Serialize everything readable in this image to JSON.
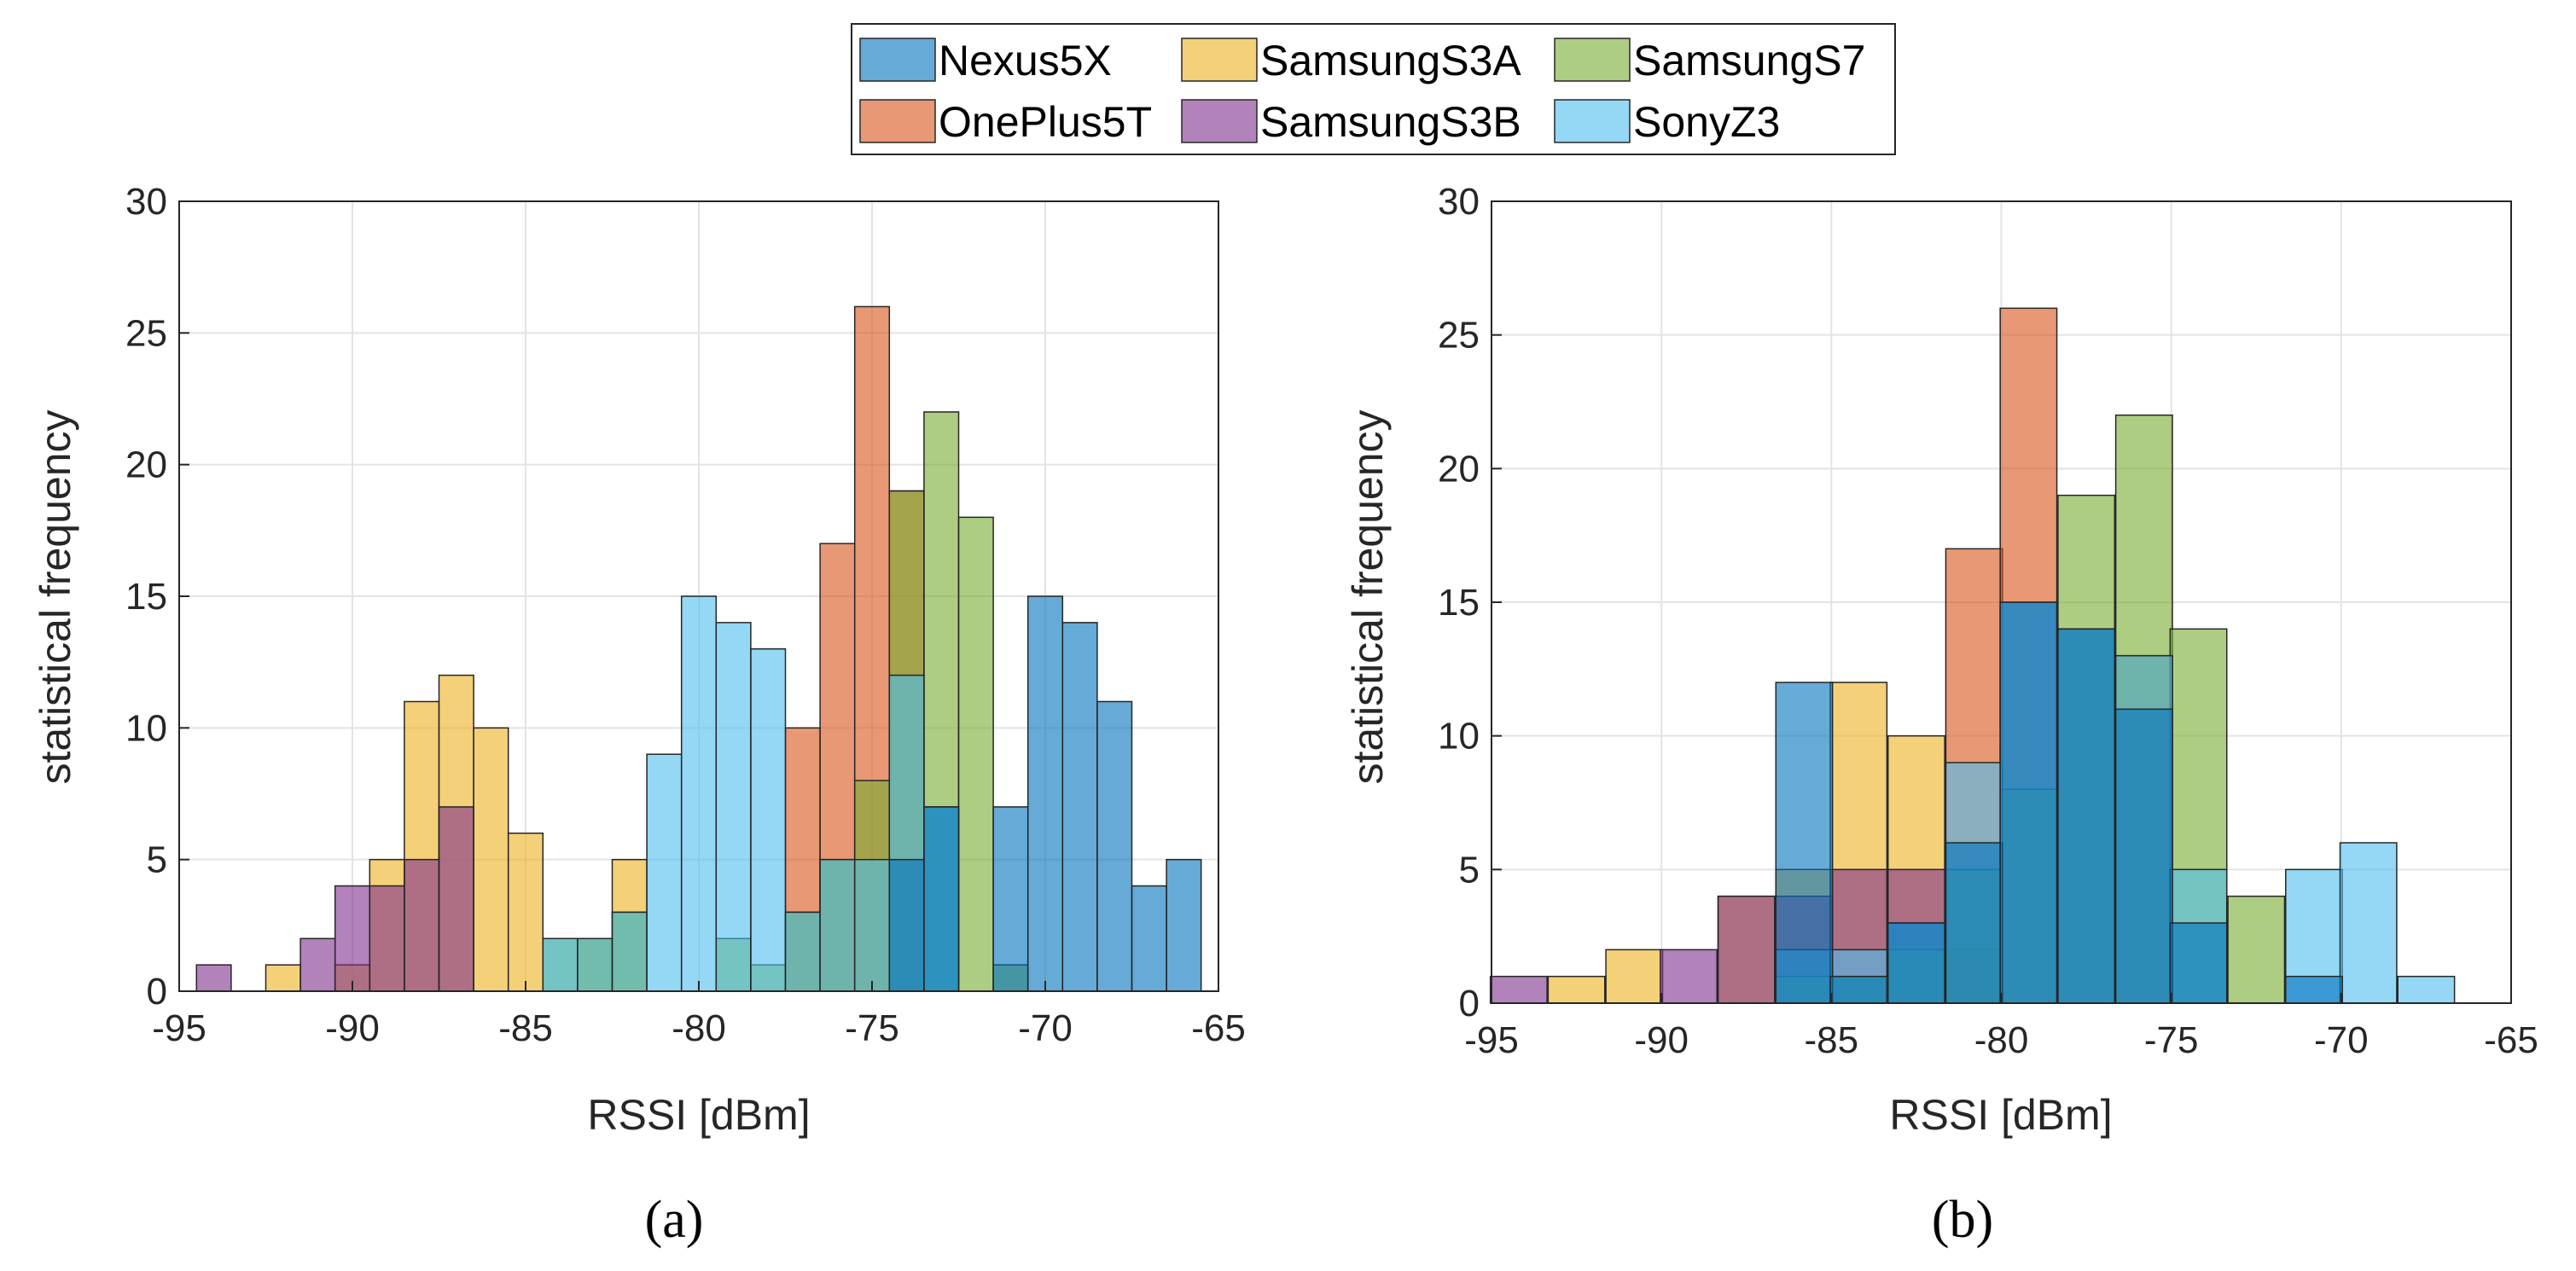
{
  "legend": {
    "items": [
      {
        "label": "Nexus5X",
        "color": "#0072BD"
      },
      {
        "label": "SamsungS3A",
        "color": "#EDB120"
      },
      {
        "label": "SamsungS7",
        "color": "#77AC30"
      },
      {
        "label": "OnePlus5T",
        "color": "#D95319"
      },
      {
        "label": "SamsungS3B",
        "color": "#7E2F8E"
      },
      {
        "label": "SonyZ3",
        "color": "#4DBEEE"
      }
    ]
  },
  "chart_data": [
    {
      "type": "bar",
      "panel": "(a)",
      "xlabel": "RSSI [dBm]",
      "ylabel": "statistical frequency",
      "xlim": [
        -95,
        -65
      ],
      "ylim": [
        0,
        30
      ],
      "xticks": [
        -95,
        -90,
        -85,
        -80,
        -75,
        -70,
        -65
      ],
      "yticks": [
        0,
        5,
        10,
        15,
        20,
        25,
        30
      ],
      "grid": true,
      "bin_width": 1,
      "series": [
        {
          "name": "SamsungS3A",
          "color": "#EDB120",
          "bins": [
            [
              -92,
              1
            ],
            [
              -90,
              1
            ],
            [
              -89,
              5
            ],
            [
              -88,
              11
            ],
            [
              -87,
              12
            ],
            [
              -86,
              10
            ],
            [
              -85,
              6
            ],
            [
              -83,
              2
            ],
            [
              -82,
              5
            ]
          ]
        },
        {
          "name": "SamsungS3B",
          "color": "#7E2F8E",
          "bins": [
            [
              -94,
              1
            ],
            [
              -91,
              2
            ],
            [
              -90,
              4
            ],
            [
              -89,
              4
            ],
            [
              -88,
              5
            ],
            [
              -87,
              7
            ]
          ]
        },
        {
          "name": "OnePlus5T",
          "color": "#D95319",
          "bins": [
            [
              -77,
              10
            ],
            [
              -76,
              17
            ],
            [
              -75,
              26
            ],
            [
              -74,
              19
            ]
          ]
        },
        {
          "name": "SamsungS7",
          "color": "#77AC30",
          "bins": [
            [
              -84,
              2
            ],
            [
              -83,
              2
            ],
            [
              -82,
              3
            ],
            [
              -79,
              2
            ],
            [
              -78,
              1
            ],
            [
              -77,
              3
            ],
            [
              -76,
              5
            ],
            [
              -75,
              8
            ],
            [
              -74,
              19
            ],
            [
              -73,
              22
            ],
            [
              -72,
              18
            ],
            [
              -71,
              1
            ]
          ]
        },
        {
          "name": "SonyZ3",
          "color": "#4DBEEE",
          "bins": [
            [
              -84,
              2
            ],
            [
              -83,
              2
            ],
            [
              -82,
              3
            ],
            [
              -81,
              9
            ],
            [
              -80,
              15
            ],
            [
              -79,
              14
            ],
            [
              -78,
              13
            ],
            [
              -77,
              3
            ],
            [
              -76,
              5
            ],
            [
              -75,
              5
            ],
            [
              -74,
              12
            ],
            [
              -73,
              7
            ]
          ]
        },
        {
          "name": "Nexus5X",
          "color": "#0072BD",
          "bins": [
            [
              -74,
              5
            ],
            [
              -73,
              7
            ],
            [
              -71,
              7
            ],
            [
              -70,
              15
            ],
            [
              -69,
              14
            ],
            [
              -68,
              11
            ],
            [
              -67,
              4
            ],
            [
              -66,
              5
            ]
          ]
        }
      ]
    },
    {
      "type": "bar",
      "panel": "(b)",
      "xlabel": "RSSI [dBm]",
      "ylabel": "statistical frequency",
      "xlim": [
        -95,
        -65
      ],
      "ylim": [
        0,
        30
      ],
      "xticks": [
        -95,
        -90,
        -85,
        -80,
        -75,
        -70,
        -65
      ],
      "yticks": [
        0,
        5,
        10,
        15,
        20,
        25,
        30
      ],
      "grid": true,
      "bin_width": 1.667,
      "series": [
        {
          "name": "SamsungS3A",
          "color": "#EDB120",
          "bins": [
            [
              -92.5,
              1
            ],
            [
              -90.8,
              2
            ],
            [
              -87.5,
              4
            ],
            [
              -85.8,
              5
            ],
            [
              -84.2,
              12
            ],
            [
              -82.5,
              10
            ],
            [
              -80.8,
              2
            ]
          ]
        },
        {
          "name": "SamsungS3B",
          "color": "#7E2F8E",
          "bins": [
            [
              -94.2,
              1
            ],
            [
              -89.2,
              2
            ],
            [
              -87.5,
              4
            ],
            [
              -85.8,
              4
            ],
            [
              -84.2,
              5
            ],
            [
              -82.5,
              5
            ]
          ]
        },
        {
          "name": "OnePlus5T",
          "color": "#D95319",
          "bins": [
            [
              -80.8,
              17
            ],
            [
              -79.2,
              26
            ],
            [
              -77.5,
              14
            ],
            [
              -75.8,
              13
            ]
          ]
        },
        {
          "name": "SamsungS7",
          "color": "#77AC30",
          "bins": [
            [
              -85.8,
              1
            ],
            [
              -84.2,
              1
            ],
            [
              -82.5,
              2
            ],
            [
              -80.8,
              5
            ],
            [
              -79.2,
              8
            ],
            [
              -77.5,
              19
            ],
            [
              -75.8,
              22
            ],
            [
              -74.2,
              14
            ],
            [
              -72.5,
              4
            ]
          ]
        },
        {
          "name": "SonyZ3",
          "color": "#4DBEEE",
          "bins": [
            [
              -85.8,
              2
            ],
            [
              -84.2,
              2
            ],
            [
              -82.5,
              3
            ],
            [
              -80.8,
              9
            ],
            [
              -79.2,
              15
            ],
            [
              -77.5,
              14
            ],
            [
              -75.8,
              13
            ],
            [
              -74.2,
              5
            ],
            [
              -70.8,
              5
            ],
            [
              -69.2,
              6
            ],
            [
              -67.5,
              1
            ]
          ]
        },
        {
          "name": "Nexus5X",
          "color": "#0072BD",
          "bins": [
            [
              -85.8,
              12
            ],
            [
              -84.2,
              1
            ],
            [
              -82.5,
              3
            ],
            [
              -80.8,
              6
            ],
            [
              -79.2,
              15
            ],
            [
              -77.5,
              14
            ],
            [
              -75.8,
              11
            ],
            [
              -74.2,
              3
            ],
            [
              -70.8,
              1
            ]
          ]
        }
      ]
    }
  ]
}
